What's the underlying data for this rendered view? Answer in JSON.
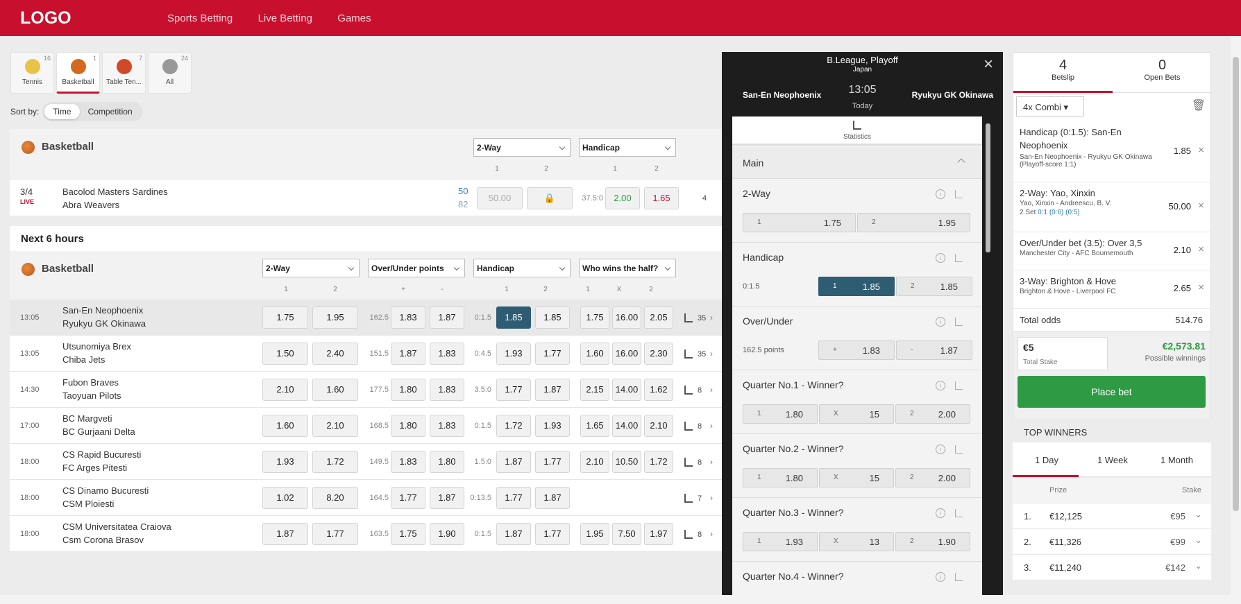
{
  "header": {
    "logo": "LOGO",
    "nav": [
      "Sports Betting",
      "Live Betting",
      "Games"
    ]
  },
  "sports": [
    {
      "label": "Tennis",
      "count": "16",
      "color": "#e8c34a"
    },
    {
      "label": "Basketball",
      "count": "1",
      "color": "#d2691e"
    },
    {
      "label": "Table Ten...",
      "count": "7",
      "color": "#d04a2a"
    },
    {
      "label": "All",
      "count": "24",
      "color": "#999999"
    }
  ],
  "sort": {
    "label": "Sort by:",
    "time": "Time",
    "competition": "Competition"
  },
  "live": {
    "title": "Basketball",
    "dd1": "2-Way",
    "dd2": "Handicap",
    "cols": [
      "1",
      "2",
      "1",
      "2"
    ],
    "match": {
      "period": "3/4",
      "status": "LIVE",
      "home": "Bacolod Masters Sardines",
      "away": "Abra Weavers",
      "score_home": "50",
      "score_away": "82",
      "odd1": "50.00",
      "line": "37.5:0",
      "h1": "2.00",
      "h2": "1.65",
      "more": "4"
    }
  },
  "next": {
    "title": "Next 6 hours",
    "sport": "Basketball",
    "dd": [
      "2-Way",
      "Over/Under points",
      "Handicap",
      "Who wins the half?"
    ],
    "cols": [
      "1",
      "2",
      "+",
      "-",
      "1",
      "2",
      "1",
      "X",
      "2"
    ],
    "rows": [
      {
        "time": "13:05",
        "home": "San-En Neophoenix",
        "away": "Ryukyu GK Okinawa",
        "w1": "1.75",
        "w2": "1.95",
        "ou": "162.5",
        "o": "1.83",
        "u": "1.87",
        "hc": "0:1.5",
        "h1": "1.85",
        "h2": "1.85",
        "a": "1.75",
        "b": "16.00",
        "c": "2.05",
        "more": "35"
      },
      {
        "time": "13:05",
        "home": "Utsunomiya Brex",
        "away": "Chiba Jets",
        "w1": "1.50",
        "w2": "2.40",
        "ou": "151.5",
        "o": "1.87",
        "u": "1.83",
        "hc": "0:4.5",
        "h1": "1.93",
        "h2": "1.77",
        "a": "1.60",
        "b": "16.00",
        "c": "2.30",
        "more": "35"
      },
      {
        "time": "14:30",
        "home": "Fubon Braves",
        "away": "Taoyuan Pilots",
        "w1": "2.10",
        "w2": "1.60",
        "ou": "177.5",
        "o": "1.80",
        "u": "1.83",
        "hc": "3.5:0",
        "h1": "1.77",
        "h2": "1.87",
        "a": "2.15",
        "b": "14.00",
        "c": "1.62",
        "more": "8"
      },
      {
        "time": "17:00",
        "home": "BC Margveti",
        "away": "BC Gurjaani Delta",
        "w1": "1.60",
        "w2": "2.10",
        "ou": "168.5",
        "o": "1.80",
        "u": "1.83",
        "hc": "0:1.5",
        "h1": "1.72",
        "h2": "1.93",
        "a": "1.65",
        "b": "14.00",
        "c": "2.10",
        "more": "8"
      },
      {
        "time": "18:00",
        "home": "CS Rapid Bucuresti",
        "away": "FC Arges Pitesti",
        "w1": "1.93",
        "w2": "1.72",
        "ou": "149.5",
        "o": "1.83",
        "u": "1.80",
        "hc": "1.5:0",
        "h1": "1.87",
        "h2": "1.77",
        "a": "2.10",
        "b": "10.50",
        "c": "1.72",
        "more": "8"
      },
      {
        "time": "18:00",
        "home": "CS Dinamo Bucuresti",
        "away": "CSM Ploiesti",
        "w1": "1.02",
        "w2": "8.20",
        "ou": "164.5",
        "o": "1.77",
        "u": "1.87",
        "hc": "0:13.5",
        "h1": "1.77",
        "h2": "1.87",
        "a": "",
        "b": "",
        "c": "",
        "more": "7"
      },
      {
        "time": "18:00",
        "home": "CSM Universitatea Craiova",
        "away": "Csm Corona Brasov",
        "w1": "1.87",
        "w2": "1.77",
        "ou": "163.5",
        "o": "1.75",
        "u": "1.90",
        "hc": "0:1.5",
        "h1": "1.87",
        "h2": "1.77",
        "a": "1.95",
        "b": "7.50",
        "c": "1.97",
        "more": "8"
      }
    ]
  },
  "modal": {
    "league": "B.League, Playoff",
    "country": "Japan",
    "home": "San-En Neophoenix",
    "away": "Ryukyu GK Okinawa",
    "time": "13:05",
    "day": "Today",
    "stats": "Statistics",
    "section": "Main",
    "markets": [
      {
        "title": "2-Way",
        "sub": "",
        "b": [
          [
            "1",
            "1.75"
          ],
          [
            "2",
            "1.95"
          ]
        ]
      },
      {
        "title": "Handicap",
        "sub": "0:1.5",
        "b": [
          [
            "1",
            "1.85"
          ],
          [
            "2",
            "1.85"
          ]
        ]
      },
      {
        "title": "Over/Under",
        "sub": "162.5 points",
        "b": [
          [
            "+",
            "1.83"
          ],
          [
            "-",
            "1.87"
          ]
        ]
      },
      {
        "title": "Quarter No.1 - Winner?",
        "sub": "",
        "b": [
          [
            "1",
            "1.80"
          ],
          [
            "X",
            "15"
          ],
          [
            "2",
            "2.00"
          ]
        ]
      },
      {
        "title": "Quarter No.2 - Winner?",
        "sub": "",
        "b": [
          [
            "1",
            "1.80"
          ],
          [
            "X",
            "15"
          ],
          [
            "2",
            "2.00"
          ]
        ]
      },
      {
        "title": "Quarter No.3 - Winner?",
        "sub": "",
        "b": [
          [
            "1",
            "1.93"
          ],
          [
            "X",
            "13"
          ],
          [
            "2",
            "1.90"
          ]
        ]
      },
      {
        "title": "Quarter No.4 - Winner?",
        "sub": "",
        "b": []
      }
    ]
  },
  "betslip": {
    "count": "4",
    "tab1": "Betslip",
    "open": "0",
    "tab2": "Open Bets",
    "combi": "4x Combi",
    "items": [
      {
        "head": "Handicap (0:1.5):  San-En Neophoenix",
        "sub": "San-En Neophoenix - Ryukyu GK Okinawa (Playoff-score 1:1)",
        "odd": "1.85"
      },
      {
        "head": "2-Way:  Yao, Xinxin",
        "sub": "Yao, Xinxin - Andreescu, B. V.",
        "sub2a": "2.Set",
        "sub2b": "0:1 (0:6) (0:5)",
        "odd": "50.00"
      },
      {
        "head": "Over/Under bet (3.5):  Over 3,5",
        "sub": "Manchester City - AFC Bournemouth",
        "odd": "2.10"
      },
      {
        "head": "3-Way:  Brighton & Hove",
        "sub": "Brighton & Hove - Liverpool FC",
        "odd": "2.65"
      }
    ],
    "total_label": "Total odds",
    "total": "514.76",
    "stake": "€5",
    "stake_label": "Total Stake",
    "win": "€2,573.81",
    "win_label": "Possible winnings",
    "place": "Place bet"
  },
  "winners": {
    "title": "TOP WINNERS",
    "tabs": [
      "1 Day",
      "1 Week",
      "1 Month"
    ],
    "prize": "Prize",
    "stake": "Stake",
    "rows": [
      [
        "1.",
        "€12,125",
        "€95"
      ],
      [
        "2.",
        "€11,326",
        "€99"
      ],
      [
        "3.",
        "€11,240",
        "€142"
      ]
    ]
  }
}
